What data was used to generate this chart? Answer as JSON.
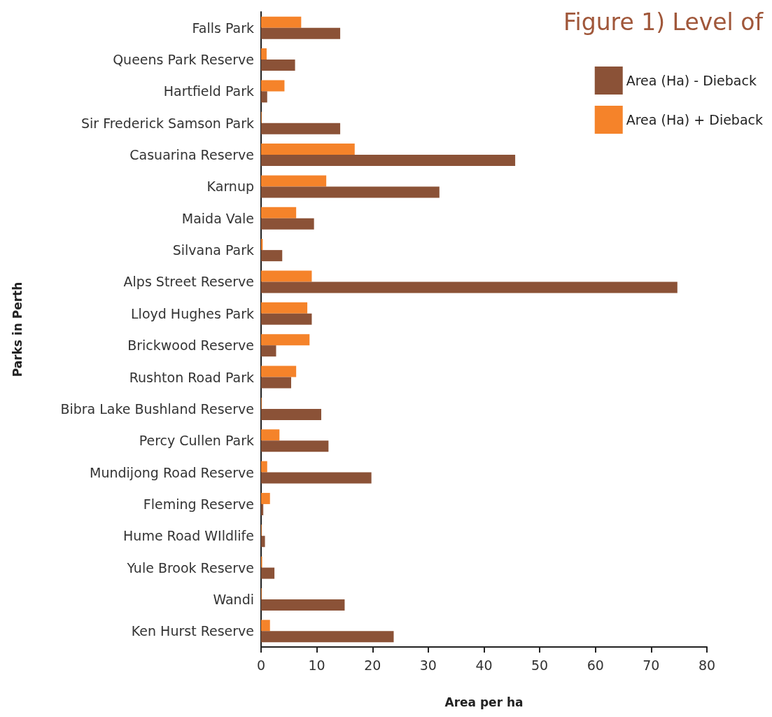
{
  "chart_data": {
    "type": "bar",
    "orientation": "horizontal",
    "title": "Figure 1) Level of",
    "xlabel": "Area per ha",
    "ylabel": "Parks in Perth",
    "categories": [
      "Falls Park",
      "Queens Park Reserve",
      "Hartfield Park",
      "Sir Frederick Samson Park",
      "Casuarina Reserve",
      "Karnup",
      "Maida Vale",
      "Silvana Park",
      "Alps Street Reserve",
      "Lloyd Hughes Park",
      "Brickwood Reserve",
      "Rushton Road Park",
      "Bibra Lake Bushland Reserve",
      "Percy Cullen Park",
      "Mundijong Road Reserve",
      "Fleming Reserve",
      "Hume Road WIldlife",
      "Yule Brook Reserve",
      "Wandi",
      "Ken Hurst Reserve"
    ],
    "series": [
      {
        "name": "Area (Ha) + Dieback",
        "color": "#f5832a",
        "values": [
          7.2,
          1.0,
          4.2,
          0.1,
          16.8,
          11.7,
          6.3,
          0.3,
          9.1,
          8.3,
          8.7,
          6.3,
          0.1,
          3.3,
          1.1,
          1.6,
          0.1,
          0.2,
          0.1,
          1.6
        ]
      },
      {
        "name": "Area (Ha) - Dieback",
        "color": "#8b5237",
        "values": [
          14.2,
          6.1,
          1.1,
          14.2,
          45.6,
          32.0,
          9.5,
          3.8,
          74.7,
          9.1,
          2.7,
          5.4,
          10.8,
          12.1,
          19.8,
          0.4,
          0.7,
          2.4,
          15.0,
          23.8
        ]
      }
    ],
    "xlim": [
      0,
      80
    ],
    "xticks": [
      0,
      10,
      20,
      30,
      40,
      50,
      60,
      70,
      80
    ],
    "grid": false,
    "legend": "top right"
  }
}
